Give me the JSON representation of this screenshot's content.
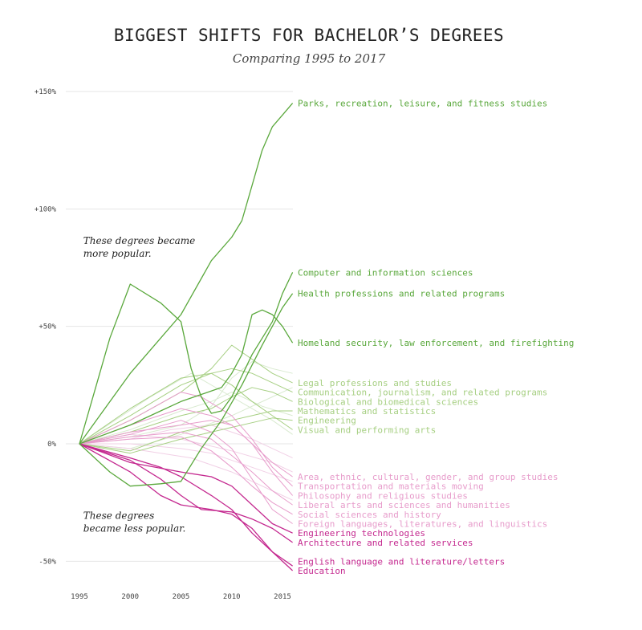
{
  "chart_data": {
    "type": "line",
    "title": "BIGGEST SHIFTS FOR BACHELOR’S DEGREES",
    "subtitle": "Comparing 1995 to 2017",
    "xlim": [
      1995,
      2016
    ],
    "ylim": [
      -55,
      150
    ],
    "x_ticks": [
      {
        "value": 1995,
        "label": "1995"
      },
      {
        "value": 2000,
        "label": "2000"
      },
      {
        "value": 2005,
        "label": "2005"
      },
      {
        "value": 2010,
        "label": "2010"
      },
      {
        "value": 2015,
        "label": "2015"
      }
    ],
    "y_ticks": [
      {
        "value": 150,
        "label": "+150%"
      },
      {
        "value": 100,
        "label": "+100%"
      },
      {
        "value": 50,
        "label": "+50%"
      },
      {
        "value": 0,
        "label": "0%"
      },
      {
        "value": -50,
        "label": "-50%"
      }
    ],
    "grid": true,
    "annotations": [
      {
        "lines": [
          "These degrees became",
          "more popular."
        ],
        "x": 1995.3,
        "y": 85
      },
      {
        "lines": [
          "These degrees",
          "became less popular."
        ],
        "x": 1995.3,
        "y": -32
      }
    ],
    "colors": {
      "strong_green": "#5aa83c",
      "light_green": "#a6cf82",
      "faint_green": "#d9ead0",
      "light_pink": "#e79ccb",
      "faint_pink": "#f1d0e6",
      "strong_magenta": "#c4288f",
      "grid": "#e6e6e6",
      "axis_text": "#444444"
    },
    "series": [
      {
        "name": "Parks, recreation, leisure, and fitness studies",
        "tier": "strong_green",
        "label_y": 145,
        "points": [
          [
            1995,
            0
          ],
          [
            1997,
            12
          ],
          [
            2000,
            30
          ],
          [
            2003,
            45
          ],
          [
            2005,
            55
          ],
          [
            2008,
            78
          ],
          [
            2010,
            88
          ],
          [
            2011,
            95
          ],
          [
            2012,
            110
          ],
          [
            2013,
            125
          ],
          [
            2014,
            135
          ],
          [
            2015,
            140
          ],
          [
            2016,
            145
          ]
        ]
      },
      {
        "name": "Computer and information sciences",
        "tier": "strong_green",
        "label_y": 73,
        "points": [
          [
            1995,
            0
          ],
          [
            1998,
            45
          ],
          [
            2000,
            68
          ],
          [
            2003,
            60
          ],
          [
            2004,
            56
          ],
          [
            2005,
            52
          ],
          [
            2006,
            32
          ],
          [
            2007,
            20
          ],
          [
            2008,
            13
          ],
          [
            2009,
            14
          ],
          [
            2010,
            20
          ],
          [
            2012,
            38
          ],
          [
            2014,
            52
          ],
          [
            2015,
            64
          ],
          [
            2016,
            73
          ]
        ]
      },
      {
        "name": "Health professions and related programs",
        "tier": "strong_green",
        "label_y": 64,
        "points": [
          [
            1995,
            0
          ],
          [
            1998,
            -12
          ],
          [
            2000,
            -18
          ],
          [
            2003,
            -17
          ],
          [
            2005,
            -16
          ],
          [
            2007,
            -2
          ],
          [
            2009,
            10
          ],
          [
            2011,
            25
          ],
          [
            2013,
            42
          ],
          [
            2015,
            58
          ],
          [
            2016,
            64
          ]
        ]
      },
      {
        "name": "Homeland security, law enforcement, and firefighting",
        "tier": "strong_green",
        "label_y": 43,
        "points": [
          [
            1995,
            0
          ],
          [
            2000,
            8
          ],
          [
            2003,
            14
          ],
          [
            2005,
            18
          ],
          [
            2007,
            21
          ],
          [
            2009,
            24
          ],
          [
            2010,
            30
          ],
          [
            2011,
            38
          ],
          [
            2012,
            55
          ],
          [
            2013,
            57
          ],
          [
            2014,
            55
          ],
          [
            2015,
            50
          ],
          [
            2016,
            43
          ]
        ]
      },
      {
        "name": "Legal professions and studies",
        "tier": "light_green",
        "label_y": 26,
        "points": [
          [
            1995,
            0
          ],
          [
            2000,
            10
          ],
          [
            2005,
            22
          ],
          [
            2008,
            32
          ],
          [
            2010,
            42
          ],
          [
            2012,
            36
          ],
          [
            2014,
            30
          ],
          [
            2016,
            26
          ]
        ]
      },
      {
        "name": "Communication, journalism, and related programs",
        "tier": "light_green",
        "label_y": 22,
        "points": [
          [
            1995,
            0
          ],
          [
            2000,
            12
          ],
          [
            2005,
            25
          ],
          [
            2008,
            30
          ],
          [
            2010,
            32
          ],
          [
            2012,
            30
          ],
          [
            2014,
            26
          ],
          [
            2016,
            22
          ]
        ]
      },
      {
        "name": "Biological and biomedical sciences",
        "tier": "light_green",
        "label_y": 18,
        "points": [
          [
            1995,
            0
          ],
          [
            2000,
            5
          ],
          [
            2005,
            12
          ],
          [
            2008,
            15
          ],
          [
            2010,
            20
          ],
          [
            2012,
            24
          ],
          [
            2014,
            22
          ],
          [
            2016,
            18
          ]
        ]
      },
      {
        "name": "Mathematics and statistics",
        "tier": "light_green",
        "label_y": 14,
        "points": [
          [
            1995,
            0
          ],
          [
            2000,
            -3
          ],
          [
            2005,
            5
          ],
          [
            2008,
            8
          ],
          [
            2010,
            10
          ],
          [
            2012,
            12
          ],
          [
            2014,
            14
          ],
          [
            2016,
            14
          ]
        ]
      },
      {
        "name": "Engineering",
        "tier": "light_green",
        "label_y": 10,
        "points": [
          [
            1995,
            0
          ],
          [
            2000,
            -4
          ],
          [
            2005,
            2
          ],
          [
            2008,
            5
          ],
          [
            2010,
            7
          ],
          [
            2012,
            9
          ],
          [
            2014,
            11
          ],
          [
            2016,
            10
          ]
        ]
      },
      {
        "name": "Visual and performing arts",
        "tier": "light_green",
        "label_y": 6,
        "points": [
          [
            1995,
            0
          ],
          [
            2000,
            15
          ],
          [
            2005,
            28
          ],
          [
            2008,
            30
          ],
          [
            2010,
            25
          ],
          [
            2012,
            18
          ],
          [
            2014,
            12
          ],
          [
            2016,
            6
          ]
        ]
      },
      {
        "name": "Area, ethnic, cultural, gender, and group studies",
        "tier": "light_pink",
        "label_y": -14,
        "points": [
          [
            1995,
            0
          ],
          [
            2000,
            5
          ],
          [
            2005,
            8
          ],
          [
            2008,
            10
          ],
          [
            2010,
            8
          ],
          [
            2012,
            0
          ],
          [
            2014,
            -8
          ],
          [
            2016,
            -14
          ]
        ]
      },
      {
        "name": "Transportation and materials moving",
        "tier": "light_pink",
        "label_y": -18,
        "points": [
          [
            1995,
            0
          ],
          [
            2000,
            10
          ],
          [
            2005,
            22
          ],
          [
            2007,
            20
          ],
          [
            2010,
            12
          ],
          [
            2012,
            2
          ],
          [
            2014,
            -10
          ],
          [
            2016,
            -18
          ]
        ]
      },
      {
        "name": "Philosophy and religious studies",
        "tier": "light_pink",
        "label_y": -22,
        "points": [
          [
            1995,
            0
          ],
          [
            2000,
            8
          ],
          [
            2005,
            15
          ],
          [
            2008,
            12
          ],
          [
            2010,
            8
          ],
          [
            2012,
            0
          ],
          [
            2014,
            -12
          ],
          [
            2016,
            -22
          ]
        ]
      },
      {
        "name": "Liberal arts and sciences and humanities",
        "tier": "light_pink",
        "label_y": -26,
        "points": [
          [
            1995,
            0
          ],
          [
            2000,
            3
          ],
          [
            2005,
            5
          ],
          [
            2008,
            2
          ],
          [
            2010,
            -5
          ],
          [
            2012,
            -12
          ],
          [
            2014,
            -20
          ],
          [
            2016,
            -26
          ]
        ]
      },
      {
        "name": "Social sciences and history",
        "tier": "light_pink",
        "label_y": -30,
        "points": [
          [
            1995,
            0
          ],
          [
            2000,
            2
          ],
          [
            2005,
            3
          ],
          [
            2008,
            -3
          ],
          [
            2010,
            -10
          ],
          [
            2012,
            -18
          ],
          [
            2014,
            -25
          ],
          [
            2016,
            -30
          ]
        ]
      },
      {
        "name": "Foreign languages, literatures, and linguistics",
        "tier": "light_pink",
        "label_y": -34,
        "points": [
          [
            1995,
            0
          ],
          [
            2000,
            4
          ],
          [
            2005,
            10
          ],
          [
            2008,
            5
          ],
          [
            2010,
            -2
          ],
          [
            2012,
            -15
          ],
          [
            2014,
            -28
          ],
          [
            2016,
            -34
          ]
        ]
      },
      {
        "name": "Engineering technologies",
        "tier": "strong_magenta",
        "label_y": -38,
        "points": [
          [
            1995,
            0
          ],
          [
            2000,
            -8
          ],
          [
            2005,
            -12
          ],
          [
            2008,
            -14
          ],
          [
            2010,
            -18
          ],
          [
            2012,
            -26
          ],
          [
            2014,
            -34
          ],
          [
            2016,
            -38
          ]
        ]
      },
      {
        "name": "Architecture and related services",
        "tier": "strong_magenta",
        "label_y": -42,
        "points": [
          [
            1995,
            0
          ],
          [
            2000,
            -7
          ],
          [
            2003,
            -15
          ],
          [
            2005,
            -22
          ],
          [
            2007,
            -28
          ],
          [
            2010,
            -29
          ],
          [
            2012,
            -32
          ],
          [
            2014,
            -36
          ],
          [
            2016,
            -42
          ]
        ]
      },
      {
        "name": "English language and literature/letters",
        "tier": "strong_magenta",
        "label_y": -50,
        "points": [
          [
            1995,
            0
          ],
          [
            2000,
            -12
          ],
          [
            2003,
            -22
          ],
          [
            2005,
            -26
          ],
          [
            2008,
            -28
          ],
          [
            2010,
            -30
          ],
          [
            2012,
            -36
          ],
          [
            2014,
            -46
          ],
          [
            2016,
            -52
          ]
        ]
      },
      {
        "name": "Education",
        "tier": "strong_magenta",
        "label_y": -54,
        "points": [
          [
            1995,
            0
          ],
          [
            2000,
            -6
          ],
          [
            2003,
            -10
          ],
          [
            2005,
            -14
          ],
          [
            2008,
            -22
          ],
          [
            2010,
            -28
          ],
          [
            2012,
            -38
          ],
          [
            2014,
            -46
          ],
          [
            2016,
            -54
          ]
        ]
      }
    ],
    "faint_series": [
      {
        "tier": "faint_green",
        "points": [
          [
            1995,
            0
          ],
          [
            2000,
            6
          ],
          [
            2005,
            14
          ],
          [
            2008,
            18
          ],
          [
            2010,
            22
          ],
          [
            2013,
            16
          ],
          [
            2016,
            12
          ]
        ]
      },
      {
        "tier": "faint_green",
        "points": [
          [
            1995,
            0
          ],
          [
            2000,
            3
          ],
          [
            2005,
            8
          ],
          [
            2008,
            16
          ],
          [
            2010,
            28
          ],
          [
            2012,
            35
          ],
          [
            2014,
            32
          ],
          [
            2016,
            30
          ]
        ]
      },
      {
        "tier": "faint_green",
        "points": [
          [
            1995,
            0
          ],
          [
            2000,
            -2
          ],
          [
            2005,
            4
          ],
          [
            2010,
            12
          ],
          [
            2014,
            20
          ],
          [
            2016,
            24
          ]
        ]
      },
      {
        "tier": "faint_green",
        "points": [
          [
            1995,
            0
          ],
          [
            2002,
            20
          ],
          [
            2006,
            30
          ],
          [
            2010,
            20
          ],
          [
            2014,
            10
          ],
          [
            2016,
            4
          ]
        ]
      },
      {
        "tier": "faint_pink",
        "points": [
          [
            1995,
            0
          ],
          [
            2000,
            0
          ],
          [
            2005,
            -2
          ],
          [
            2008,
            -4
          ],
          [
            2012,
            -10
          ],
          [
            2016,
            -16
          ]
        ]
      },
      {
        "tier": "faint_pink",
        "points": [
          [
            1995,
            0
          ],
          [
            2000,
            4
          ],
          [
            2005,
            2
          ],
          [
            2010,
            -3
          ],
          [
            2014,
            -8
          ],
          [
            2016,
            -12
          ]
        ]
      },
      {
        "tier": "faint_pink",
        "points": [
          [
            1995,
            0
          ],
          [
            2000,
            2
          ],
          [
            2004,
            6
          ],
          [
            2008,
            8
          ],
          [
            2012,
            2
          ],
          [
            2016,
            -6
          ]
        ]
      },
      {
        "tier": "faint_pink",
        "points": [
          [
            1995,
            0
          ],
          [
            2000,
            -2
          ],
          [
            2006,
            -6
          ],
          [
            2010,
            -12
          ],
          [
            2014,
            -20
          ],
          [
            2016,
            -24
          ]
        ]
      }
    ]
  }
}
